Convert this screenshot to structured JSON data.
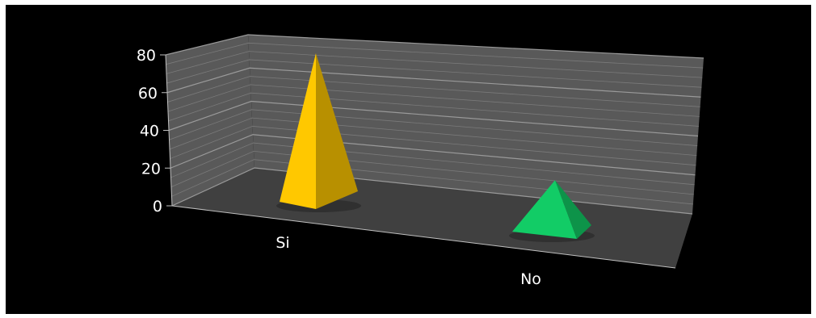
{
  "chart_data": {
    "type": "bar",
    "style": "3d-pyramid",
    "categories": [
      "Si",
      "No"
    ],
    "values": [
      80,
      27
    ],
    "colors": [
      "#ffc800",
      "#12cc66"
    ],
    "ylim": [
      0,
      80
    ],
    "yticks": [
      0,
      20,
      40,
      60,
      80
    ],
    "tick_labels": [
      "0",
      "20",
      "40",
      "60",
      "80"
    ],
    "grid": true,
    "title": "",
    "xlabel": "",
    "ylabel": ""
  }
}
